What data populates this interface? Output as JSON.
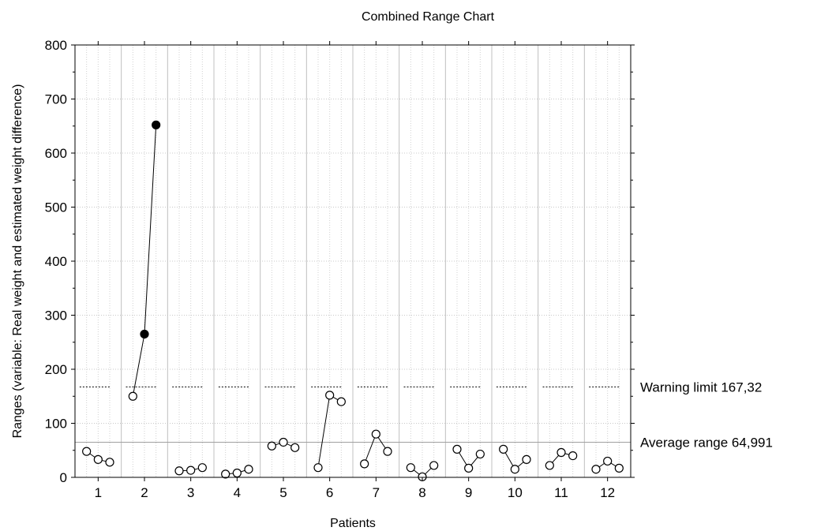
{
  "chart_data": {
    "type": "line",
    "title": "Combined Range Chart",
    "xlabel": "Patients",
    "ylabel": "Ranges (variable: Real weight and estimated weight difference)",
    "ylim": [
      0,
      800
    ],
    "yticks": [
      0,
      100,
      200,
      300,
      400,
      500,
      600,
      700,
      800
    ],
    "categories": [
      "1",
      "2",
      "3",
      "4",
      "5",
      "6",
      "7",
      "8",
      "9",
      "10",
      "11",
      "12"
    ],
    "points_per_category": 3,
    "grid": true,
    "series": [
      {
        "name": "",
        "values": [
          [
            48,
            33,
            28
          ],
          [
            150,
            265,
            652
          ],
          [
            12,
            13,
            18
          ],
          [
            6,
            8,
            15
          ],
          [
            58,
            65,
            55
          ],
          [
            18,
            152,
            140
          ],
          [
            25,
            80,
            48
          ],
          [
            18,
            1,
            22
          ],
          [
            52,
            17,
            43
          ],
          [
            52,
            15,
            33
          ],
          [
            22,
            46,
            40
          ],
          [
            15,
            30,
            17
          ]
        ]
      }
    ],
    "out_of_control": [
      [
        2,
        2
      ],
      [
        2,
        3
      ]
    ],
    "reference_lines": [
      {
        "label": "Warning limit 167,32",
        "value": 167.32,
        "style": "dashed"
      },
      {
        "label": "Average range 64,991",
        "value": 64.991,
        "style": "solid"
      }
    ]
  }
}
